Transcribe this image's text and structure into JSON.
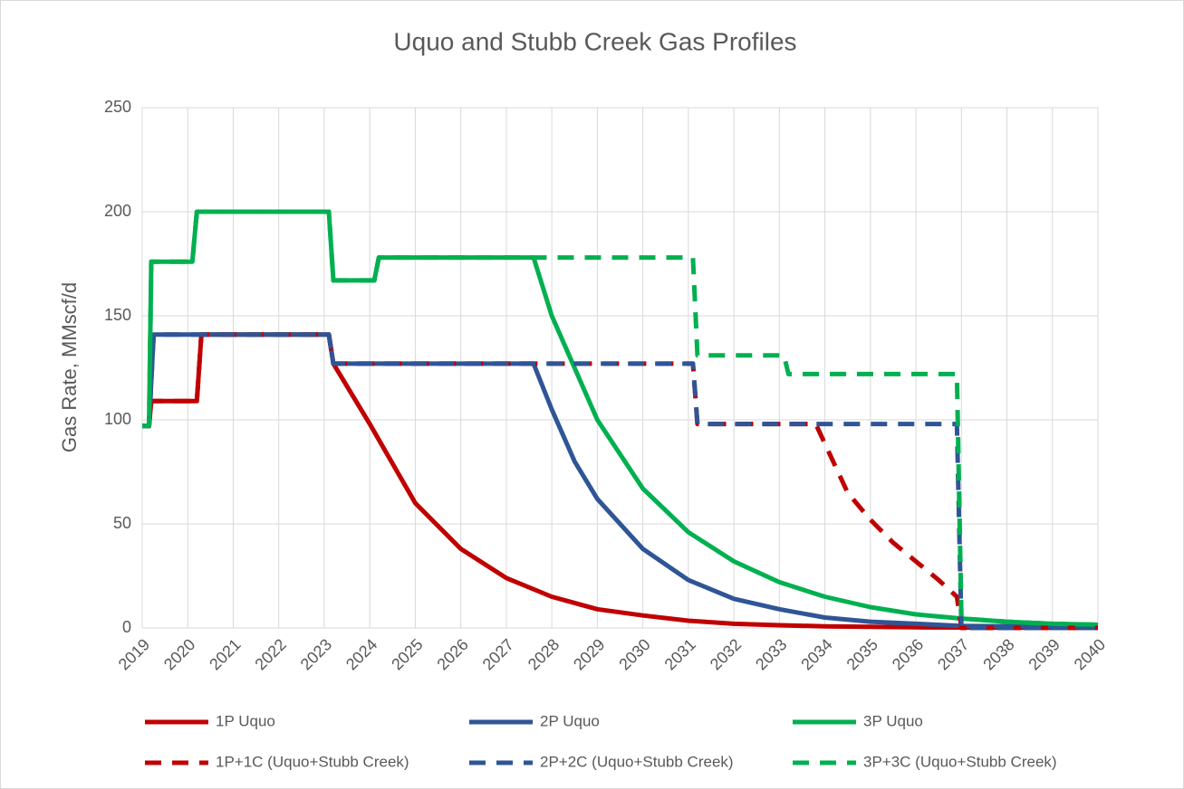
{
  "chart_data": {
    "type": "line",
    "title": "Uquo and Stubb Creek Gas Profiles",
    "y_label": "Gas Rate, MMscf/d",
    "xlim": [
      2019,
      2040
    ],
    "xticks": [
      2019,
      2020,
      2021,
      2022,
      2023,
      2024,
      2025,
      2026,
      2027,
      2028,
      2029,
      2030,
      2031,
      2032,
      2033,
      2034,
      2035,
      2036,
      2037,
      2038,
      2039,
      2040
    ],
    "ylim": [
      0,
      250
    ],
    "yticks": [
      0,
      50,
      100,
      150,
      200,
      250
    ],
    "grid": true,
    "legend": "bottom",
    "series": [
      {
        "name": "1P Uquo",
        "color": "#c00000",
        "line_style": "solid",
        "x": [
          2019,
          2019.15,
          2019.2,
          2020.2,
          2020.3,
          2023.1,
          2023.2,
          2024,
          2025,
          2026,
          2027,
          2028,
          2029,
          2030,
          2031,
          2032,
          2033,
          2034,
          2036,
          2040
        ],
        "values": [
          97,
          97,
          109,
          109,
          141,
          141,
          127,
          98,
          60,
          38,
          24,
          15,
          9,
          6,
          3.5,
          2,
          1.3,
          0.8,
          0.3,
          0
        ]
      },
      {
        "name": "2P Uquo",
        "color": "#2f5597",
        "line_style": "solid",
        "x": [
          2019,
          2019.15,
          2019.25,
          2023.1,
          2023.2,
          2027.6,
          2028,
          2028.5,
          2029,
          2030,
          2031,
          2032,
          2033,
          2034,
          2035,
          2036,
          2037,
          2040
        ],
        "values": [
          97,
          97,
          141,
          141,
          127,
          127,
          105,
          80,
          62,
          38,
          23,
          14,
          9,
          5,
          3,
          2,
          1,
          0.5
        ]
      },
      {
        "name": "3P Uquo",
        "color": "#00b050",
        "line_style": "solid",
        "x": [
          2019,
          2019.15,
          2019.2,
          2020.1,
          2020.2,
          2023.1,
          2023.2,
          2024.1,
          2024.2,
          2027.6,
          2028,
          2029,
          2030,
          2031,
          2032,
          2033,
          2034,
          2035,
          2036,
          2037,
          2038,
          2039,
          2040
        ],
        "values": [
          97,
          97,
          176,
          176,
          200,
          200,
          167,
          167,
          178,
          178,
          150,
          100,
          67,
          46,
          32,
          22,
          15,
          10,
          6.5,
          4.5,
          3,
          2,
          1.5
        ]
      },
      {
        "name": "1P+1C (Uquo+Stubb Creek)",
        "color": "#c00000",
        "line_style": "dashed",
        "x": [
          2019,
          2019.15,
          2019.2,
          2020.2,
          2020.3,
          2023.1,
          2023.2,
          2031.1,
          2031.2,
          2033.8,
          2034.5,
          2035,
          2035.5,
          2036,
          2036.5,
          2036.9,
          2037,
          2040
        ],
        "values": [
          97,
          97,
          109,
          109,
          141,
          141,
          127,
          127,
          98,
          98,
          65,
          52,
          41,
          32,
          23,
          15,
          0,
          0
        ]
      },
      {
        "name": "2P+2C (Uquo+Stubb Creek)",
        "color": "#2f5597",
        "line_style": "dashed",
        "x": [
          2019,
          2019.15,
          2019.25,
          2023.1,
          2023.2,
          2031.1,
          2031.2,
          2036.9,
          2037,
          2040
        ],
        "values": [
          97,
          97,
          141,
          141,
          127,
          127,
          98,
          98,
          0,
          0
        ]
      },
      {
        "name": "3P+3C (Uquo+Stubb Creek)",
        "color": "#00b050",
        "line_style": "dashed",
        "x": [
          2019,
          2019.15,
          2019.2,
          2020.1,
          2020.2,
          2023.1,
          2023.2,
          2024.1,
          2024.2,
          2031.1,
          2031.2,
          2033.1,
          2033.2,
          2036.9,
          2037,
          2038,
          2039,
          2040
        ],
        "values": [
          97,
          97,
          176,
          176,
          200,
          200,
          167,
          167,
          178,
          178,
          131,
          131,
          122,
          122,
          4.5,
          3,
          2,
          1.5
        ]
      }
    ]
  }
}
